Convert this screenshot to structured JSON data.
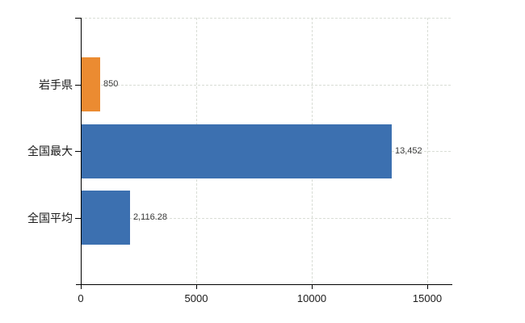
{
  "chart_data": {
    "type": "bar",
    "orientation": "horizontal",
    "title": "",
    "xlabel": "",
    "ylabel": "",
    "categories": [
      "岩手県",
      "全国最大",
      "全国平均"
    ],
    "series": [
      {
        "name": "値",
        "values": [
          850,
          13452,
          2116.28
        ]
      }
    ],
    "value_labels": [
      "850",
      "13,452",
      "2,116.28"
    ],
    "bar_colors": [
      "#eb8b31",
      "#3c70b0",
      "#3c70b0"
    ],
    "x_ticks": [
      0,
      5000,
      10000,
      15000
    ],
    "x_tick_labels": [
      "0",
      "5000",
      "10000",
      "15000"
    ],
    "xlim": [
      0,
      16084
    ],
    "grid": "dashed",
    "grid_lines": "vertical-at-ticks-and-horizontal-at-category-centers-and-top",
    "legend_position": "none",
    "colors": {
      "bar_orange": "#eb8b31",
      "bar_blue": "#3c70b0",
      "grid": "#d9ddd6",
      "axis": "#000000",
      "value_label_text": "#3a3a3a",
      "tick_label_text": "#1a1a1a",
      "background": "#ffffff"
    }
  }
}
